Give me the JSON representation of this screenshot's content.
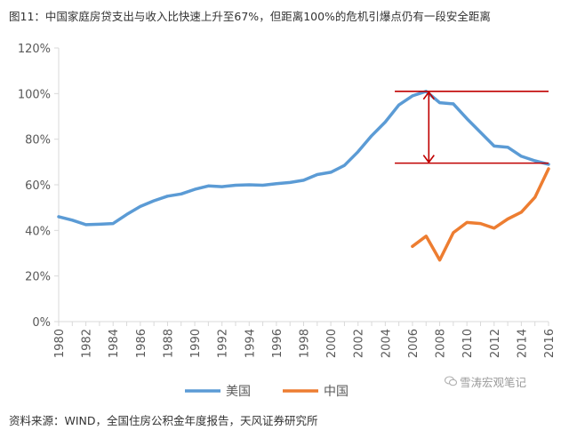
{
  "title": "图11：中国家庭房贷支出与收入比快速上升至67%，但距离100%的危机引爆点仍有一段安全距离",
  "source": "资料来源：WIND，全国住房公积金年度报告，天风证券研究所",
  "watermark": {
    "text": "雪涛宏观笔记",
    "icon": "wechat-icon"
  },
  "colors": {
    "us": "#5b9bd5",
    "china": "#ed7d31",
    "annotation": "#c00000",
    "axis": "#d9d9d9"
  },
  "chart_data": {
    "type": "line",
    "x": [
      1980,
      1981,
      1982,
      1983,
      1984,
      1985,
      1986,
      1987,
      1988,
      1989,
      1990,
      1991,
      1992,
      1993,
      1994,
      1995,
      1996,
      1997,
      1998,
      1999,
      2000,
      2001,
      2002,
      2003,
      2004,
      2005,
      2006,
      2007,
      2008,
      2009,
      2010,
      2011,
      2012,
      2013,
      2014,
      2015,
      2016
    ],
    "xlim": [
      1980,
      2016
    ],
    "ylim": [
      0,
      120
    ],
    "yticks": [
      0,
      20,
      40,
      60,
      80,
      100,
      120
    ],
    "ytick_labels": [
      "0%",
      "20%",
      "40%",
      "60%",
      "80%",
      "100%",
      "120%"
    ],
    "xticks": [
      1980,
      1982,
      1984,
      1986,
      1988,
      1990,
      1992,
      1994,
      1996,
      1998,
      2000,
      2002,
      2004,
      2006,
      2008,
      2010,
      2012,
      2014,
      2016
    ],
    "xtick_labels": [
      "1980",
      "1982",
      "1984",
      "1986",
      "1988",
      "1990",
      "1992",
      "1994",
      "1996",
      "1998",
      "2000",
      "2002",
      "2004",
      "2006",
      "2008",
      "2010",
      "2012",
      "2014",
      "2016"
    ],
    "series": [
      {
        "name": "美国",
        "color": "#5b9bd5",
        "values": [
          46,
          44.5,
          42.5,
          42.7,
          43,
          47,
          50.5,
          53,
          55,
          56,
          58,
          59.5,
          59.2,
          59.8,
          60,
          59.8,
          60.5,
          61,
          62,
          64.5,
          65.5,
          68.5,
          74.5,
          81.5,
          87.5,
          95,
          99,
          101,
          96,
          95.5,
          89,
          83,
          77,
          76.5,
          72.5,
          70.5,
          69
        ]
      },
      {
        "name": "中国",
        "color": "#ed7d31",
        "values": [
          null,
          null,
          null,
          null,
          null,
          null,
          null,
          null,
          null,
          null,
          null,
          null,
          null,
          null,
          null,
          null,
          null,
          null,
          null,
          null,
          null,
          null,
          null,
          null,
          null,
          null,
          33,
          37.5,
          27,
          39,
          43.5,
          43,
          41,
          45,
          48,
          54.5,
          67
        ]
      }
    ],
    "annotations": {
      "upper_line": {
        "y": 101,
        "x_from": 2004.7,
        "x_to": 2016
      },
      "lower_line": {
        "y": 69.5,
        "x_from": 2004.7,
        "x_to": 2016
      },
      "arrow": {
        "x": 2007.2,
        "y_from": 101,
        "y_to": 69.5
      }
    },
    "legend": "bottom",
    "grid": false
  }
}
